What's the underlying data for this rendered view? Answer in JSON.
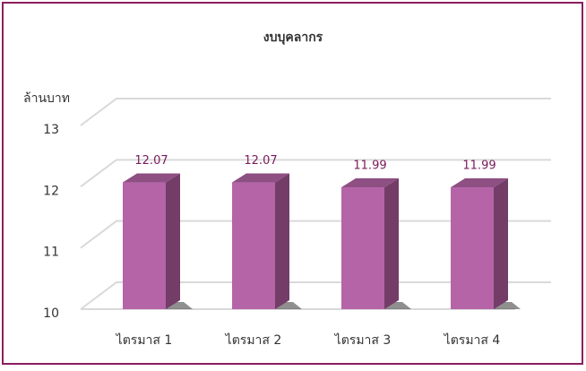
{
  "chart_data": {
    "type": "bar3d",
    "title": "งบบุคลากร",
    "y_label": "ล้านบาท",
    "categories": [
      "ไตรมาส 1",
      "ไตรมาส 2",
      "ไตรมาส 3",
      "ไตรมาส 4"
    ],
    "values": [
      12.07,
      12.07,
      11.99,
      11.99
    ],
    "color": "#b564a8",
    "ylim": [
      10,
      13
    ],
    "yticks": [
      10,
      11,
      12,
      13
    ],
    "grid": true
  }
}
